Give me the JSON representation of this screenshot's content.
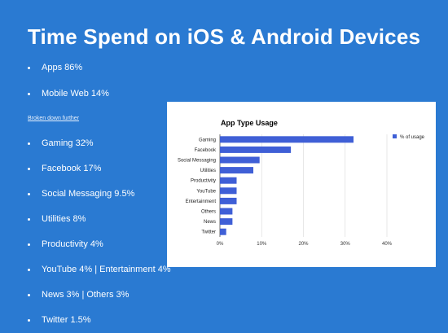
{
  "slide": {
    "title": "Time Spend on iOS & Android Devices",
    "top_bullets": [
      "Apps 86%",
      "Mobile Web 14%"
    ],
    "subheading": "Broken down further",
    "breakdown_bullets": [
      "Gaming 32%",
      "Facebook 17%",
      "Social Messaging 9.5%",
      "Utilities 8%",
      "Productivity 4%",
      "YouTube 4% | Entertainment 4%",
      "News 3% | Others 3%",
      "Twitter 1.5%"
    ]
  },
  "colors": {
    "background": "#2a7ad2",
    "bar": "#3f5fd6",
    "text": "#ffffff"
  },
  "chart_data": {
    "type": "bar",
    "orientation": "horizontal",
    "title": "App Type Usage",
    "categories": [
      "Gaming",
      "Facebook",
      "Social Messaging",
      "Utilities",
      "Productivity",
      "YouTube",
      "Entertainment",
      "Others",
      "News",
      "Twitter"
    ],
    "series": [
      {
        "name": "% of usage",
        "values": [
          32,
          17,
          9.5,
          8,
          4,
          4,
          4,
          3,
          3,
          1.5
        ]
      }
    ],
    "xlim": [
      0,
      40
    ],
    "xticks": [
      "0%",
      "10%",
      "20%",
      "30%",
      "40%"
    ],
    "grid": true,
    "legend_position": "top-right"
  }
}
